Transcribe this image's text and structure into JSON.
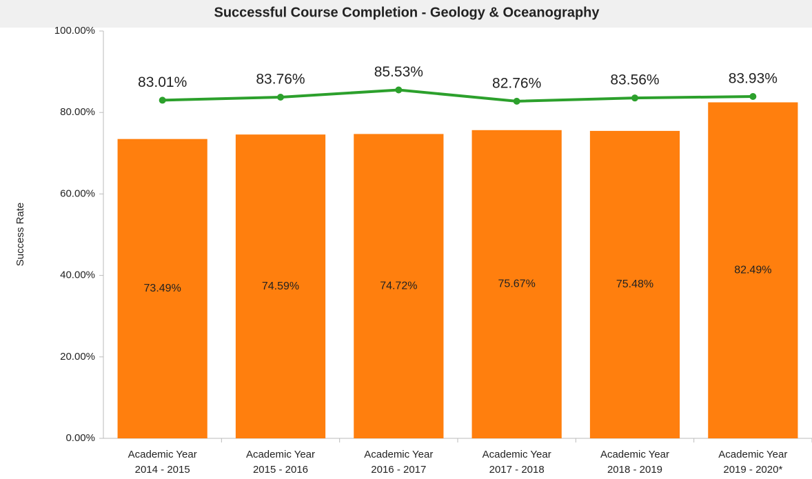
{
  "chart_data": {
    "type": "bar",
    "title": "Successful Course Completion - Geology & Oceanography",
    "y_label": "Success Rate",
    "categories": [
      [
        "Academic Year",
        "2014 - 2015"
      ],
      [
        "Academic Year",
        "2015 - 2016"
      ],
      [
        "Academic Year",
        "2016 - 2017"
      ],
      [
        "Academic Year",
        "2017 - 2018"
      ],
      [
        "Academic Year",
        "2018 - 2019"
      ],
      [
        "Academic Year",
        "2019 - 2020*"
      ]
    ],
    "series": [
      {
        "type": "bar",
        "color": "#ff7f0e",
        "values": [
          73.49,
          74.59,
          74.72,
          75.67,
          75.48,
          82.49
        ],
        "value_labels": [
          "73.49%",
          "74.59%",
          "74.72%",
          "75.67%",
          "75.48%",
          "82.49%"
        ]
      },
      {
        "type": "line",
        "color": "#2ca02c",
        "values": [
          83.01,
          83.76,
          85.53,
          82.76,
          83.56,
          83.93
        ],
        "value_labels": [
          "83.01%",
          "83.76%",
          "85.53%",
          "82.76%",
          "83.56%",
          "83.93%"
        ]
      }
    ],
    "ylim": [
      0,
      100
    ],
    "yticks": [
      {
        "value": 0,
        "label": "0.00%"
      },
      {
        "value": 20,
        "label": "20.00%"
      },
      {
        "value": 40,
        "label": "40.00%"
      },
      {
        "value": 60,
        "label": "60.00%"
      },
      {
        "value": 80,
        "label": "80.00%"
      },
      {
        "value": 100,
        "label": "100.00%"
      }
    ],
    "grid": false
  }
}
